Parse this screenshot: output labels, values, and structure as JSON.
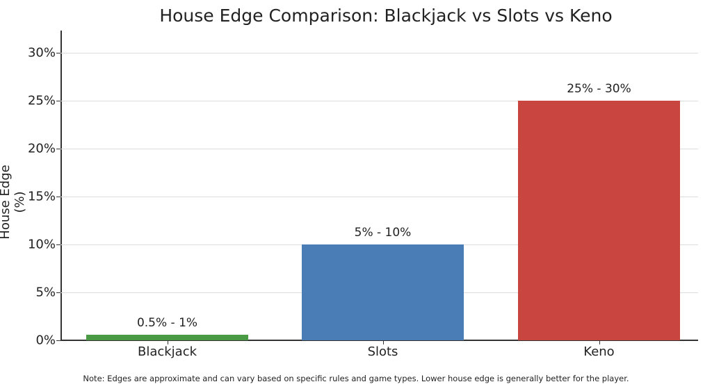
{
  "chart_data": {
    "type": "bar",
    "title": "House Edge Comparison: Blackjack vs Slots vs Keno",
    "xlabel": "",
    "ylabel": "House Edge (%)",
    "ylim": [
      0,
      32
    ],
    "yticks": [
      "0%",
      "5%",
      "10%",
      "15%",
      "20%",
      "25%",
      "30%"
    ],
    "ytick_values": [
      0,
      5,
      10,
      15,
      20,
      25,
      30
    ],
    "grid": true,
    "categories": [
      "Blackjack",
      "Slots",
      "Keno"
    ],
    "values": [
      0.6,
      10,
      25
    ],
    "bar_labels": [
      "0.5% - 1%",
      "5% - 10%",
      "25% - 30%"
    ],
    "colors": [
      "#4a9a45",
      "#4a7cb5",
      "#c8463f"
    ],
    "note": "Note: Edges are approximate and can vary based on specific rules and game types. Lower house edge is generally better for the player."
  }
}
